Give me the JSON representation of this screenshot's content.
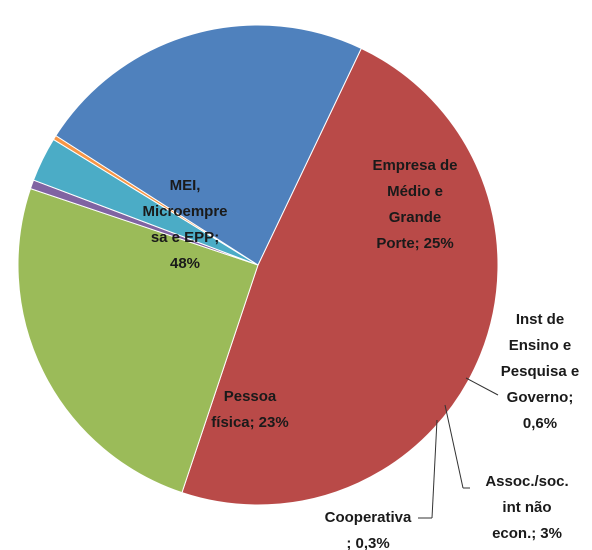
{
  "chart_data": {
    "type": "pie",
    "categories": [
      [
        "MEI,",
        "Microempre",
        "sa e EPP;"
      ],
      [
        "Empresa de",
        "Médio e",
        "Grande",
        "Porte;"
      ],
      [
        "Inst de",
        "Ensino e",
        "Pesquisa e",
        "Governo;"
      ],
      [
        "Assoc./soc.",
        "int não",
        "econ.;"
      ],
      [
        "Cooperativa"
      ],
      [
        "Pessoa",
        "física;"
      ]
    ],
    "values": [
      48,
      25,
      0.6,
      3,
      0.3,
      23
    ],
    "value_labels": [
      "48%",
      "25%",
      "0,6%",
      "3%",
      "; 0,3%",
      "23%"
    ],
    "colors": [
      "#b94a48",
      "#9bbb59",
      "#8064a2",
      "#4bacc6",
      "#f79646",
      "#4f81bd"
    ]
  }
}
